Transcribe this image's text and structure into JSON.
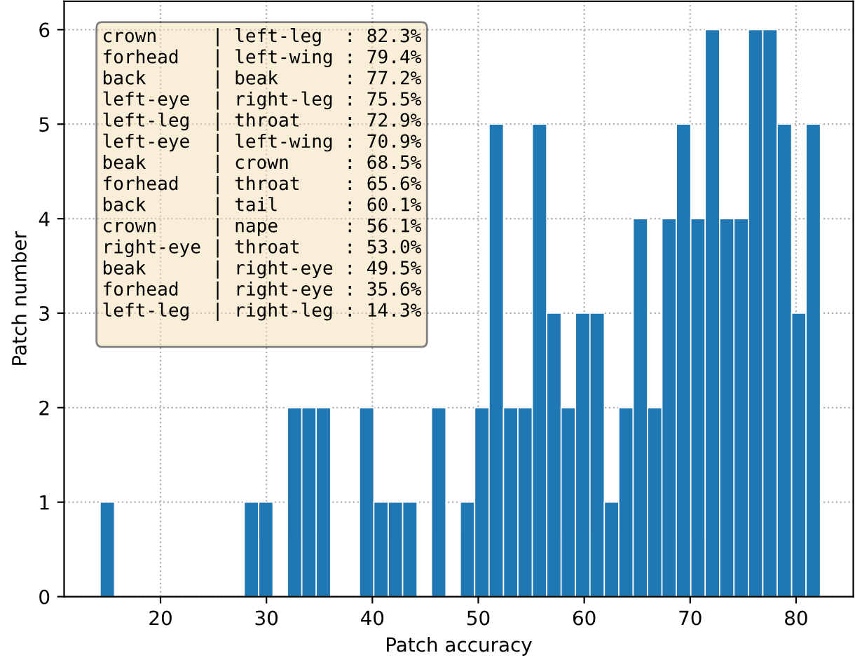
{
  "chart_data": {
    "type": "histogram",
    "xlabel": "Patch accuracy",
    "ylabel": "Patch number",
    "bins": [
      14.3,
      15.66,
      17.02,
      18.38,
      19.74,
      21.1,
      22.46,
      23.82,
      25.18,
      26.54,
      27.9,
      29.26,
      30.62,
      31.98,
      33.34,
      34.7,
      36.06,
      37.42,
      38.78,
      40.14,
      41.5,
      42.86,
      44.22,
      45.58,
      46.94,
      48.3,
      49.66,
      51.02,
      52.38,
      53.74,
      55.1,
      56.46,
      57.82,
      59.18,
      60.54,
      61.9,
      63.26,
      64.62,
      65.98,
      67.34,
      68.7,
      70.06,
      71.42,
      72.78,
      74.14,
      75.5,
      76.86,
      78.22,
      79.58,
      80.94,
      82.3
    ],
    "values": [
      1,
      0,
      0,
      0,
      0,
      0,
      0,
      0,
      0,
      0,
      1,
      1,
      0,
      2,
      2,
      2,
      0,
      0,
      2,
      1,
      1,
      1,
      0,
      2,
      0,
      1,
      2,
      5,
      2,
      2,
      5,
      3,
      2,
      3,
      3,
      1,
      2,
      4,
      2,
      4,
      5,
      4,
      6,
      4,
      4,
      6,
      6,
      5,
      3,
      5
    ],
    "color": "#1f77b4",
    "xlim": [
      10.9,
      85.4
    ],
    "ylim": [
      0,
      6.3
    ],
    "xticks": [
      20,
      30,
      40,
      50,
      60,
      70,
      80
    ],
    "yticks": [
      0,
      1,
      2,
      3,
      4,
      5,
      6
    ],
    "grid": true,
    "annotations": [
      "crown     | left-leg  : 82.3%\nforhead   | left-wing : 79.4%\nback      | beak      : 77.2%\nleft-eye  | right-leg : 75.5%\nleft-leg  | throat    : 72.9%\nleft-eye  | left-wing : 70.9%\nbeak      | crown     : 68.5%\nforhead   | throat    : 65.6%\nback      | tail      : 60.1%\ncrown     | nape      : 56.1%\nright-eye | throat    : 53.0%\nbeak      | right-eye : 49.5%\nforhead   | right-eye : 35.6%\nleft-leg  | right-leg : 14.3%\n"
    ]
  }
}
